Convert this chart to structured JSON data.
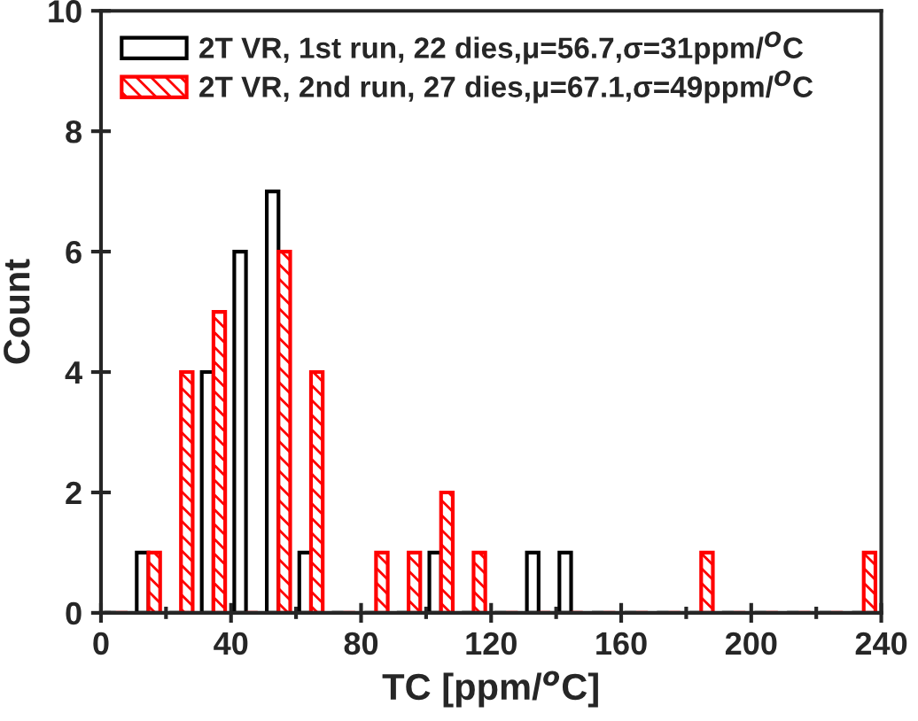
{
  "chart_data": {
    "type": "histogram",
    "xlabel": "TC [ppm/$^{o}$C]",
    "ylabel": "Count",
    "bins": [
      0,
      10,
      20,
      30,
      40,
      50,
      60,
      70,
      80,
      90,
      100,
      110,
      120,
      130,
      140,
      150,
      160,
      170,
      180,
      190,
      200,
      210,
      220,
      230,
      240
    ],
    "series": [
      {
        "name": "2T VR, 1st run, 22 dies,μ=56.7,σ=31ppm/$^{O}$C",
        "color": "#000000",
        "values": [
          0,
          1,
          0,
          4,
          6,
          7,
          1,
          0,
          0,
          0,
          1,
          0,
          0,
          1,
          1,
          0,
          0,
          0,
          0,
          0,
          0,
          0,
          0,
          0
        ]
      },
      {
        "name": "2T VR, 2nd run, 27 dies,μ=67.1,σ=49ppm/$^{O}$C",
        "color": "#ff0000",
        "values": [
          0,
          1,
          4,
          5,
          0,
          6,
          4,
          0,
          1,
          1,
          2,
          1,
          0,
          0,
          0,
          0,
          0,
          0,
          1,
          0,
          0,
          0,
          0,
          1
        ]
      }
    ],
    "xlim": [
      0,
      240
    ],
    "xticks": [
      0,
      40,
      80,
      120,
      160,
      200,
      240
    ],
    "ylim": [
      0,
      10
    ],
    "yticks": [
      0,
      2,
      4,
      6,
      8,
      10
    ],
    "legend": "top left",
    "grid": false
  }
}
